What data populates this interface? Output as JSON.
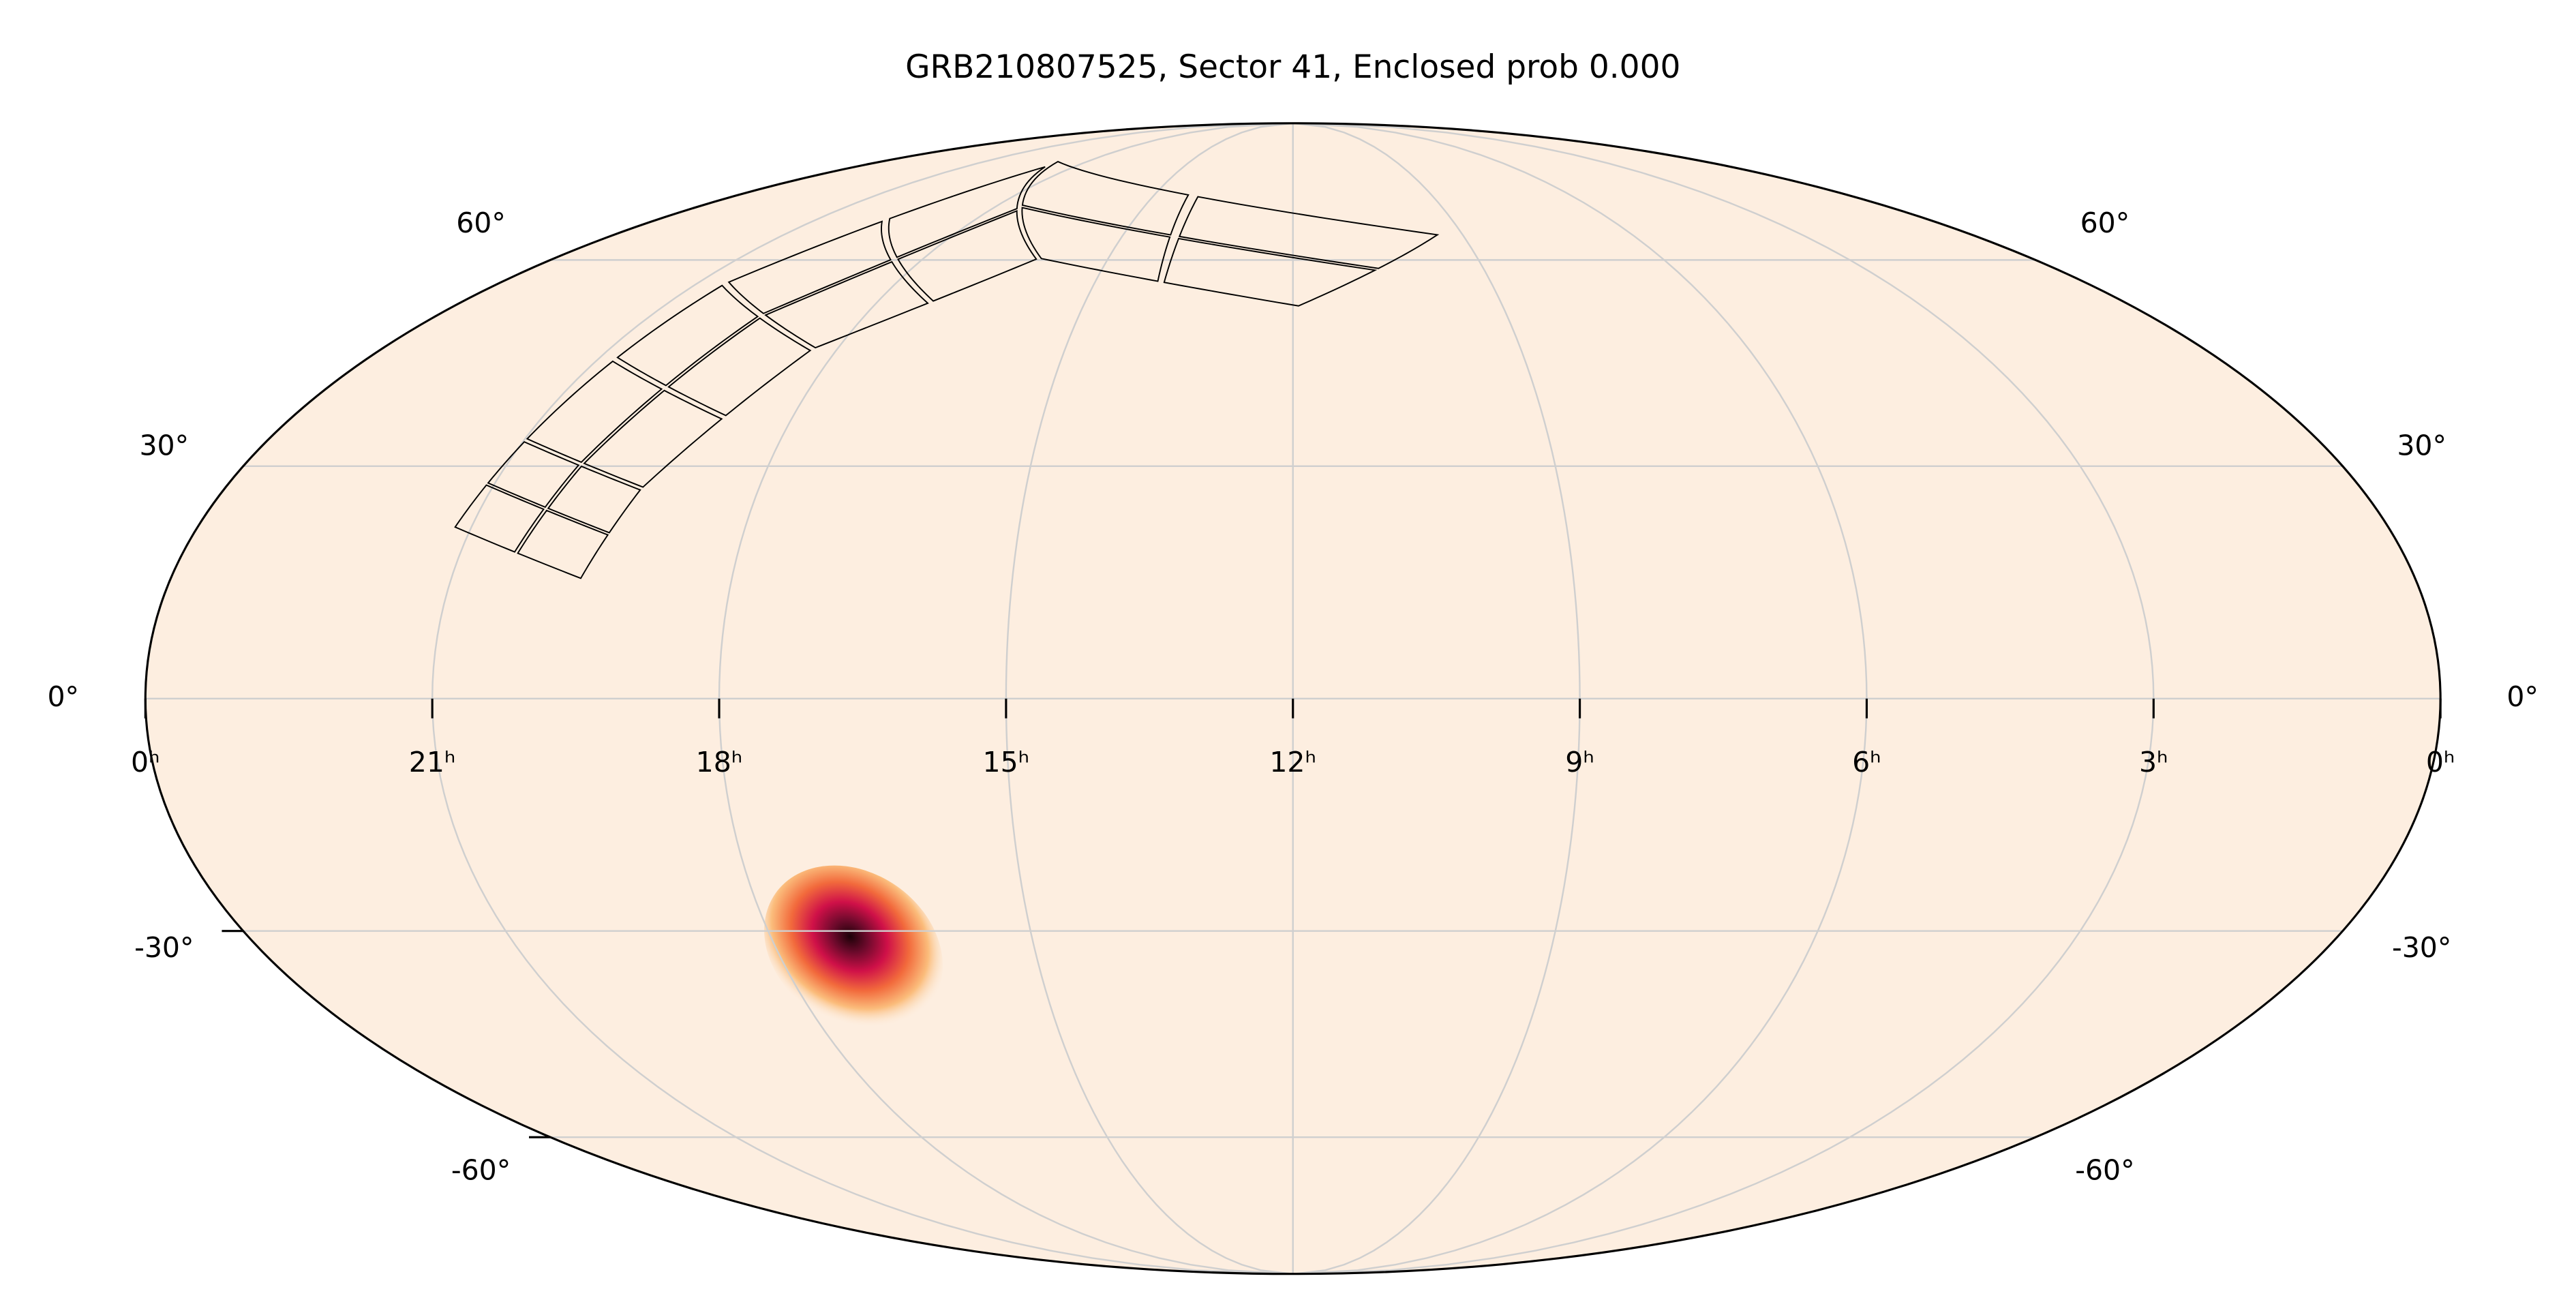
{
  "chart_data": {
    "type": "mollweide",
    "title": "GRB210807525, Sector 41, Enclosed prob 0.000",
    "xlim": [
      24,
      0
    ],
    "ylim": [
      -90,
      90
    ],
    "xticks": [
      {
        "value": 24,
        "label": "0ʰ"
      },
      {
        "value": 21,
        "label": "21ʰ"
      },
      {
        "value": 18,
        "label": "18ʰ"
      },
      {
        "value": 15,
        "label": "15ʰ"
      },
      {
        "value": 12,
        "label": "12ʰ"
      },
      {
        "value": 9,
        "label": "9ʰ"
      },
      {
        "value": 6,
        "label": "6ʰ"
      },
      {
        "value": 3,
        "label": "3ʰ"
      },
      {
        "value": 0,
        "label": "0ʰ"
      }
    ],
    "yticks": [
      {
        "value": 60,
        "label": "60°"
      },
      {
        "value": 30,
        "label": "30°"
      },
      {
        "value": 0,
        "label": "0°"
      },
      {
        "value": -30,
        "label": "-30°"
      },
      {
        "value": -60,
        "label": "-60°"
      }
    ],
    "grid": true,
    "localization": {
      "ra": 17.1,
      "dec": -32.3
    },
    "footprint": [
      {
        "ra": [
          21.2,
          21.0,
          19.3,
          19.6
        ],
        "dec": [
          21.9,
          33.5,
          26.9,
          15.1
        ]
      },
      {
        "ra": [
          21.0,
          20.6,
          18.3,
          19.3
        ],
        "dec": [
          33.5,
          56.3,
          46.2,
          26.9
        ]
      },
      {
        "ra": [
          20.6,
          18.8,
          16.1,
          18.3
        ],
        "dec": [
          56.3,
          77.7,
          60.1,
          46.2
        ]
      },
      {
        "ra": [
          19.0,
          9.3,
          11.9,
          16.1
        ],
        "dec": [
          78.8,
          64.2,
          52.5,
          60.1
        ]
      }
    ]
  }
}
